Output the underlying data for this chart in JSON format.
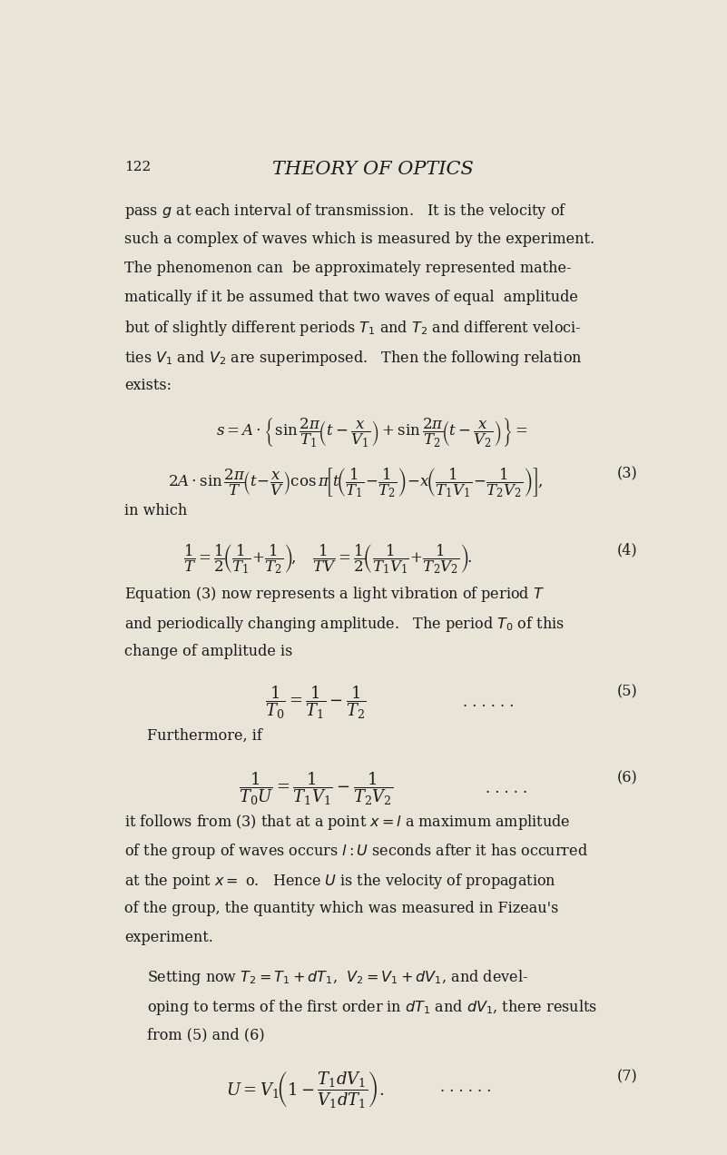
{
  "background_color": "#e8e4d8",
  "text_color": "#1a1a1a",
  "page_number": "122",
  "title": "THEORY OF OPTICS",
  "body_lines": [
    "pass $g$ at each interval of transmission.   It is the velocity of",
    "such a complex of waves which is measured by the experiment.",
    "The phenomenon can  be approximately represented mathe-",
    "matically if it be assumed that two waves of equal  amplitude",
    "but of slightly different periods $T_1$ and $T_2$ and different veloci-",
    "ties $V_1$ and $V_2$ are superimposed.   Then the following relation",
    "exists:"
  ],
  "eq3_line1": "$s = A \\cdot \\left\\{ \\sin\\dfrac{2\\pi}{T_1}\\!\\left(t - \\dfrac{x}{V_1}\\right) + \\sin\\dfrac{2\\pi}{T_2}\\!\\left(t - \\dfrac{x}{V_2}\\right) \\right\\} =$",
  "eq3_line2": "$2A \\cdot \\sin\\dfrac{2\\pi}{T}\\!\\left(t\\!-\\!\\dfrac{x}{V}\\right)\\cos\\pi\\!\\left[t\\!\\left(\\dfrac{1}{T_1}\\!-\\!\\dfrac{1}{T_2}\\right)\\!-\\!x\\!\\left(\\dfrac{1}{T_1 V_1}\\!-\\!\\dfrac{1}{T_2 V_2}\\right)\\right]\\!,$",
  "eq3_label": "(3)",
  "in_which": "in which",
  "eq4": "$\\dfrac{1}{T} = \\dfrac{1}{2}\\!\\left(\\dfrac{1}{T_1}\\!+\\!\\dfrac{1}{T_2}\\right)\\!,\\quad \\dfrac{1}{TV} = \\dfrac{1}{2}\\!\\left(\\dfrac{1}{T_1 V_1}\\!+\\!\\dfrac{1}{T_2 V_2}\\right)\\!.$",
  "eq4_label": "(4)",
  "para2_lines": [
    "Equation (3) now represents a light vibration of period $T$",
    "and periodically changing amplitude.   The period $T_0$ of this",
    "change of amplitude is"
  ],
  "eq5": "$\\dfrac{1}{T_0} = \\dfrac{1}{T_1} - \\dfrac{1}{T_2}$",
  "eq5_dots": ". . . . . .",
  "eq5_label": "(5)",
  "furthermore": "Furthermore, if",
  "eq6": "$\\dfrac{1}{T_0 U} = \\dfrac{1}{T_1 V_1} - \\dfrac{1}{T_2 V_2}$",
  "eq6_dots": ". . . . .",
  "eq6_label": "(6)",
  "para3_lines": [
    "it follows from (3) that at a point $x = l$ a maximum amplitude",
    "of the group of waves occurs $l : U$ seconds after it has occurred",
    "at the point $x =$ o.   Hence $U$ is the velocity of propagation",
    "of the group, the quantity which was measured in Fizeau's",
    "experiment."
  ],
  "para4_lines": [
    "Setting now $T_2 = T_1 + dT_1$,  $V_2 = V_1 + dV_1$, and devel-",
    "oping to terms of the first order in $dT_1$ and $dV_1$, there results",
    "from (5) and (6)"
  ],
  "eq7": "$U = V_1\\!\\left(1 - \\dfrac{T_1 dV_1}{V_1 dT_1}\\right).$",
  "eq7_dots": ". . . . . .",
  "eq7_label": "(7)"
}
